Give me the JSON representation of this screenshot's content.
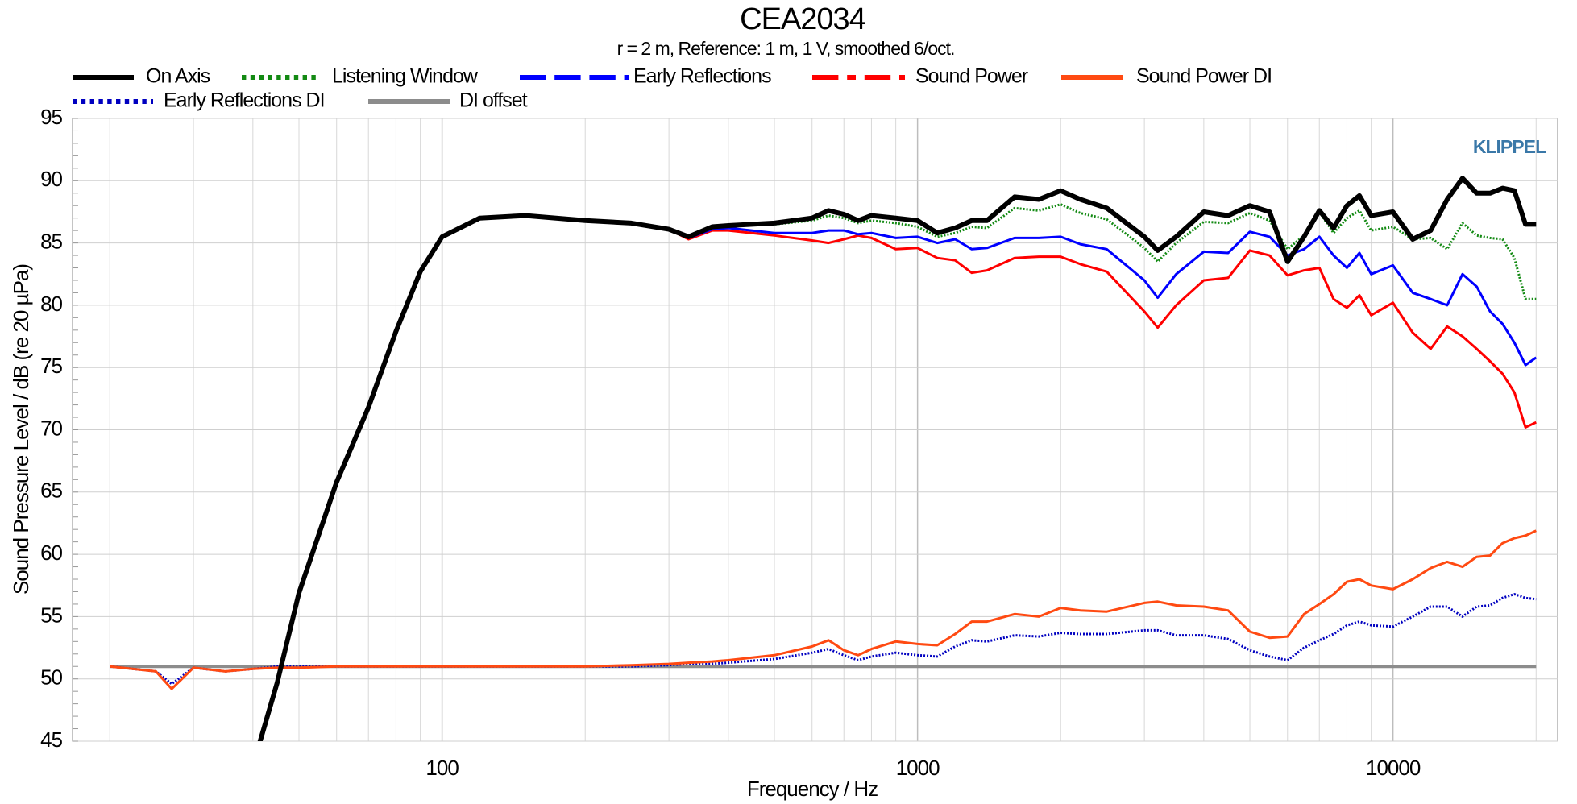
{
  "chart_data": {
    "type": "line",
    "title": "CEA2034",
    "subtitle": "r = 2 m,  Reference: 1 m, 1 V, smoothed 6/oct.",
    "xlabel": "Frequency / Hz",
    "ylabel": "Sound Pressure Level / dB (re 20 µPa)",
    "annotation": "KLIPPEL",
    "xscale": "log",
    "grid": true,
    "xgrid_minor": true,
    "xlim": [
      16.7,
      22200
    ],
    "ylim": [
      45,
      95
    ],
    "xticks": [
      100,
      1000,
      10000
    ],
    "yticks": [
      45,
      50,
      55,
      60,
      65,
      70,
      75,
      80,
      85,
      90,
      95
    ],
    "x": [
      20,
      25,
      27,
      30,
      35,
      40,
      45,
      50,
      60,
      70,
      80,
      90,
      100,
      120,
      150,
      200,
      250,
      300,
      330,
      370,
      400,
      500,
      600,
      650,
      700,
      750,
      800,
      900,
      1000,
      1100,
      1200,
      1300,
      1400,
      1600,
      1800,
      2000,
      2200,
      2500,
      3000,
      3200,
      3500,
      4000,
      4500,
      5000,
      5500,
      6000,
      6500,
      7000,
      7500,
      8000,
      8500,
      9000,
      10000,
      11000,
      12000,
      13000,
      14000,
      15000,
      16000,
      17000,
      18000,
      19000,
      20000
    ],
    "series": [
      {
        "name": "On Axis",
        "color": "#000000",
        "line_style": "solid",
        "width": 6,
        "values": [
          null,
          null,
          null,
          null,
          null,
          43,
          49.7,
          56.9,
          65.8,
          71.8,
          77.9,
          82.7,
          85.5,
          87,
          87.2,
          86.8,
          86.6,
          86.1,
          85.5,
          86.3,
          86.4,
          86.6,
          87,
          87.6,
          87.3,
          86.8,
          87.2,
          87,
          86.8,
          85.8,
          86.2,
          86.8,
          86.8,
          88.7,
          88.5,
          89.2,
          88.5,
          87.8,
          85.5,
          84.4,
          85.5,
          87.5,
          87.2,
          88,
          87.5,
          83.5,
          85.5,
          87.6,
          86.2,
          88,
          88.8,
          87.2,
          87.5,
          85.3,
          86,
          88.5,
          90.2,
          89,
          89,
          89.4,
          89.2,
          86.5,
          86.5
        ]
      },
      {
        "name": "Listening Window",
        "color": "#138a13",
        "line_style": "dotted",
        "width": 3,
        "values": [
          null,
          null,
          null,
          null,
          null,
          43,
          49.7,
          56.9,
          65.8,
          71.8,
          77.9,
          82.7,
          85.5,
          87,
          87.2,
          86.8,
          86.6,
          86.1,
          85.5,
          86.3,
          86.4,
          86.5,
          86.8,
          87.2,
          87,
          86.6,
          86.8,
          86.6,
          86.3,
          85.5,
          85.8,
          86.3,
          86.2,
          87.8,
          87.6,
          88.1,
          87.4,
          86.9,
          84.6,
          83.5,
          85,
          86.7,
          86.6,
          87.4,
          86.8,
          84.5,
          85.6,
          87.5,
          85.8,
          87,
          87.6,
          86,
          86.3,
          85.3,
          85.4,
          84.5,
          86.6,
          85.6,
          85.4,
          85.3,
          83.8,
          80.5,
          80.5
        ]
      },
      {
        "name": "Early Reflections",
        "color": "#0000ff",
        "line_style": "dashed",
        "width": 3,
        "values": [
          null,
          null,
          null,
          null,
          null,
          43,
          49.7,
          56.9,
          65.8,
          71.8,
          77.9,
          82.7,
          85.5,
          87,
          87.2,
          86.8,
          86.6,
          86.1,
          85.4,
          86.1,
          86.2,
          85.8,
          85.8,
          86,
          86,
          85.7,
          85.8,
          85.4,
          85.5,
          85,
          85.3,
          84.5,
          84.6,
          85.4,
          85.4,
          85.5,
          84.9,
          84.5,
          82,
          80.6,
          82.5,
          84.3,
          84.2,
          85.9,
          85.5,
          84,
          84.5,
          85.5,
          84,
          83,
          84.2,
          82.5,
          83.2,
          81,
          80.5,
          80,
          82.5,
          81.5,
          79.5,
          78.5,
          77,
          75.2,
          75.8
        ]
      },
      {
        "name": "Sound Power",
        "color": "#ff0000",
        "line_style": "dashdot",
        "width": 3,
        "values": [
          null,
          null,
          null,
          null,
          null,
          43,
          49.7,
          56.9,
          65.8,
          71.8,
          77.9,
          82.7,
          85.5,
          87,
          87.2,
          86.8,
          86.6,
          86.1,
          85.3,
          86,
          86,
          85.6,
          85.2,
          85,
          85.3,
          85.6,
          85.4,
          84.5,
          84.6,
          83.8,
          83.6,
          82.6,
          82.8,
          83.8,
          83.9,
          83.9,
          83.3,
          82.7,
          79.5,
          78.2,
          80,
          82,
          82.2,
          84.4,
          84,
          82.4,
          82.8,
          83,
          80.5,
          79.8,
          80.8,
          79.2,
          80.2,
          77.8,
          76.5,
          78.3,
          77.5,
          76.5,
          75.5,
          74.5,
          73,
          70.2,
          70.6
        ]
      },
      {
        "name": "Sound Power DI",
        "color": "#ff4a12",
        "line_style": "solid",
        "width": 3,
        "values": [
          51,
          50.6,
          49.2,
          50.9,
          50.6,
          50.8,
          50.9,
          50.9,
          51,
          51,
          51,
          51,
          51,
          51,
          51,
          51,
          51.1,
          51.2,
          51.3,
          51.4,
          51.5,
          51.9,
          52.6,
          53.1,
          52.3,
          51.9,
          52.4,
          53,
          52.8,
          52.7,
          53.6,
          54.6,
          54.6,
          55.2,
          55,
          55.7,
          55.5,
          55.4,
          56.1,
          56.2,
          55.9,
          55.8,
          55.5,
          53.8,
          53.3,
          53.4,
          55.2,
          56,
          56.8,
          57.8,
          58,
          57.5,
          57.2,
          58,
          58.9,
          59.4,
          59,
          59.8,
          59.9,
          60.9,
          61.3,
          61.5,
          61.9
        ]
      },
      {
        "name": "Early Reflections DI",
        "color": "#0000c0",
        "line_style": "dotted",
        "width": 3,
        "values": [
          51,
          50.6,
          49.6,
          50.9,
          50.6,
          50.8,
          51,
          51,
          51,
          51,
          51,
          51,
          51,
          51,
          51,
          51,
          51,
          51.1,
          51.2,
          51.2,
          51.3,
          51.6,
          52.1,
          52.4,
          51.9,
          51.5,
          51.8,
          52.1,
          51.9,
          51.8,
          52.6,
          53.1,
          53,
          53.5,
          53.4,
          53.7,
          53.6,
          53.6,
          53.9,
          53.9,
          53.5,
          53.5,
          53.2,
          52.3,
          51.8,
          51.5,
          52.5,
          53.1,
          53.6,
          54.3,
          54.6,
          54.3,
          54.2,
          55,
          55.8,
          55.8,
          55,
          55.8,
          55.9,
          56.5,
          56.8,
          56.5,
          56.4
        ]
      },
      {
        "name": "DI offset",
        "color": "#8c8c8c",
        "line_style": "solid",
        "width": 4,
        "values": [
          51,
          51,
          51,
          51,
          51,
          51,
          51,
          51,
          51,
          51,
          51,
          51,
          51,
          51,
          51,
          51,
          51,
          51,
          51,
          51,
          51,
          51,
          51,
          51,
          51,
          51,
          51,
          51,
          51,
          51,
          51,
          51,
          51,
          51,
          51,
          51,
          51,
          51,
          51,
          51,
          51,
          51,
          51,
          51,
          51,
          51,
          51,
          51,
          51,
          51,
          51,
          51,
          51,
          51,
          51,
          51,
          51,
          51,
          51,
          51,
          51,
          51,
          51
        ]
      }
    ]
  }
}
